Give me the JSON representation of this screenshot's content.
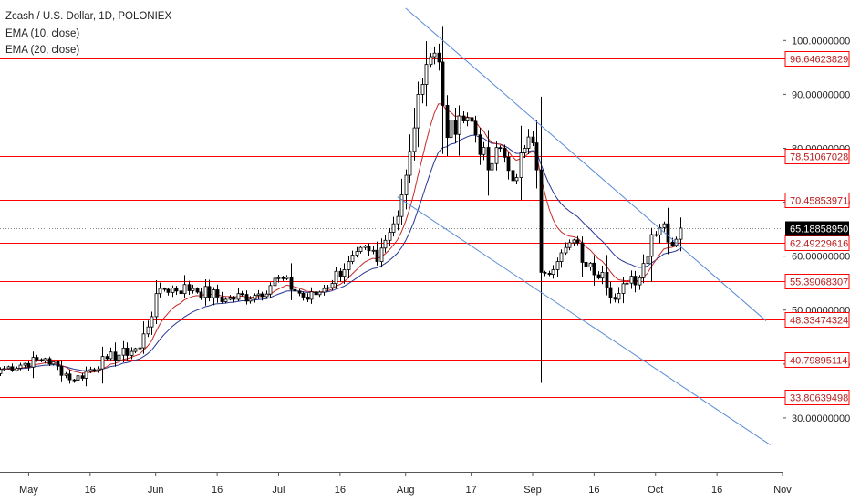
{
  "chart_data": {
    "type": "candlestick",
    "title": "Zcash / U.S. Dollar, 1D, POLONIEX",
    "indicators": [
      "EMA (10, close)",
      "EMA (20, close)"
    ],
    "colors": {
      "up_candle": "#ffffff",
      "down_candle": "#000000",
      "candle_outline": "#000000",
      "ema10": "#c62828",
      "ema20": "#283593",
      "levels": "#ff0000",
      "trendlines": "#5b8cd6",
      "last_price_tag": "#000000"
    },
    "y_axis": {
      "range": [
        20,
        107.5
      ],
      "tick_labels": [
        "30.00000000",
        "40.00000000",
        "50.00000000",
        "60.00000000",
        "70.00000000",
        "80.00000000",
        "90.00000000",
        "100.00000000"
      ],
      "tick_values": [
        30,
        40,
        50,
        60,
        70,
        80,
        90,
        100
      ]
    },
    "x_axis": {
      "tick_labels": [
        "May",
        "16",
        "Jun",
        "16",
        "Jul",
        "16",
        "Aug",
        "17",
        "Sep",
        "16",
        "Oct",
        "16",
        "Nov"
      ],
      "tick_values": [
        "2018-05-01",
        "2018-05-16",
        "2018-06-01",
        "2018-06-16",
        "2018-07-01",
        "2018-07-16",
        "2018-08-01",
        "2018-08-17",
        "2018-09-01",
        "2018-09-16",
        "2018-10-01",
        "2018-10-16",
        "2018-11-01"
      ],
      "start": "2018-04-24",
      "end": "2018-11-01"
    },
    "horizontal_levels": [
      {
        "value": 96.64623829,
        "label": "96.64623829"
      },
      {
        "value": 78.51067028,
        "label": "78.51067028"
      },
      {
        "value": 70.45853971,
        "label": "70.45853971"
      },
      {
        "value": 62.49229616,
        "label": "62.49229616"
      },
      {
        "value": 55.39068307,
        "label": "55.39068307"
      },
      {
        "value": 48.33474324,
        "label": "48.33474324"
      },
      {
        "value": 40.79895114,
        "label": "40.79895114"
      },
      {
        "value": 33.80639498,
        "label": "33.80639498"
      }
    ],
    "last_price": {
      "value": 65.1885895,
      "label": "65.18858950"
    },
    "trendlines": [
      {
        "from": {
          "date": "2018-08-01",
          "value": 106
        },
        "to": {
          "date": "2018-10-28",
          "value": 48
        }
      },
      {
        "from": {
          "date": "2018-07-30",
          "value": 71
        },
        "to": {
          "date": "2018-10-29",
          "value": 25
        }
      }
    ],
    "anchors": [
      {
        "date": "2018-04-24",
        "close": 39
      },
      {
        "date": "2018-05-05",
        "close": 41
      },
      {
        "date": "2018-05-12",
        "close": 37
      },
      {
        "date": "2018-05-20",
        "close": 41
      },
      {
        "date": "2018-05-28",
        "close": 43
      },
      {
        "date": "2018-06-02",
        "close": 54
      },
      {
        "date": "2018-06-10",
        "close": 54
      },
      {
        "date": "2018-06-18",
        "close": 52
      },
      {
        "date": "2018-06-26",
        "close": 53
      },
      {
        "date": "2018-07-01",
        "close": 56
      },
      {
        "date": "2018-07-08",
        "close": 52
      },
      {
        "date": "2018-07-12",
        "close": 54
      },
      {
        "date": "2018-07-18",
        "close": 59
      },
      {
        "date": "2018-07-23",
        "close": 61
      },
      {
        "date": "2018-07-25",
        "close": 59
      },
      {
        "date": "2018-07-29",
        "close": 66
      },
      {
        "date": "2018-08-01",
        "close": 75
      },
      {
        "date": "2018-08-04",
        "close": 90
      },
      {
        "date": "2018-08-07",
        "close": 97
      },
      {
        "date": "2018-08-09",
        "close": 96
      },
      {
        "date": "2018-08-11",
        "close": 82
      },
      {
        "date": "2018-08-14",
        "close": 86
      },
      {
        "date": "2018-08-17",
        "close": 85
      },
      {
        "date": "2018-08-21",
        "close": 76
      },
      {
        "date": "2018-08-24",
        "close": 80
      },
      {
        "date": "2018-08-27",
        "close": 74
      },
      {
        "date": "2018-08-30",
        "close": 80
      },
      {
        "date": "2018-09-01",
        "close": 81
      },
      {
        "date": "2018-09-02",
        "close": 76
      },
      {
        "date": "2018-09-03",
        "close": 57
      },
      {
        "date": "2018-09-07",
        "close": 59
      },
      {
        "date": "2018-09-11",
        "close": 63
      },
      {
        "date": "2018-09-14",
        "close": 58
      },
      {
        "date": "2018-09-18",
        "close": 57
      },
      {
        "date": "2018-09-21",
        "close": 52
      },
      {
        "date": "2018-09-24",
        "close": 55
      },
      {
        "date": "2018-09-27",
        "close": 56
      },
      {
        "date": "2018-09-30",
        "close": 64
      },
      {
        "date": "2018-10-03",
        "close": 66
      },
      {
        "date": "2018-10-05",
        "close": 62
      },
      {
        "date": "2018-10-07",
        "close": 65.19
      }
    ]
  }
}
